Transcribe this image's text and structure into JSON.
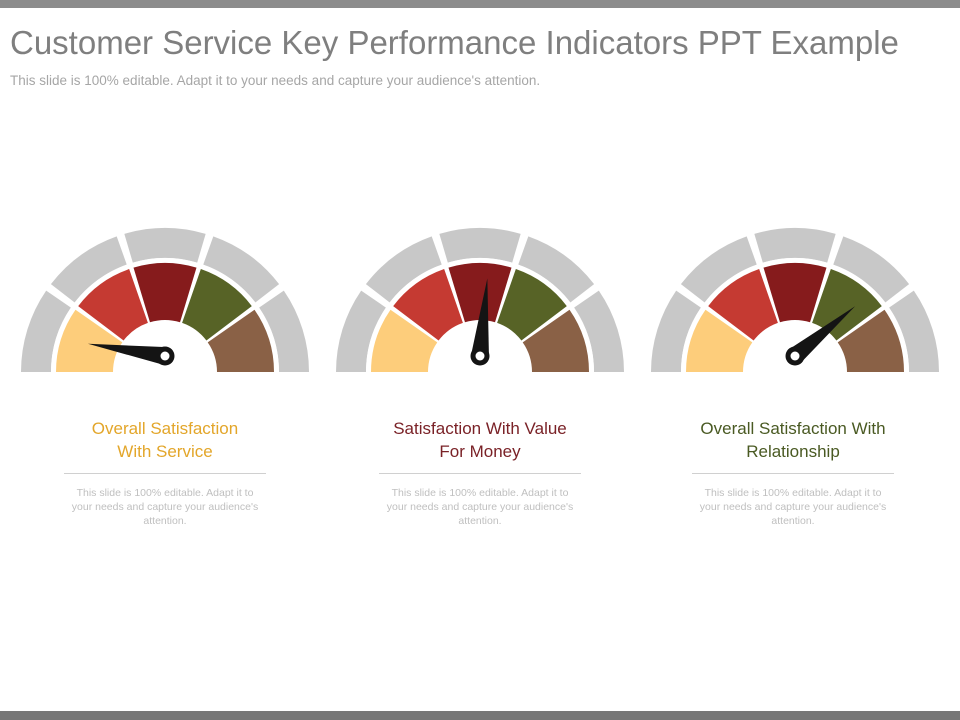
{
  "slide": {
    "title": "Customer Service Key Performance Indicators PPT Example",
    "subtitle": "This slide is 100% editable. Adapt it to your needs and capture your audience's attention."
  },
  "colors": {
    "outer_ring": "#c8c8c8",
    "segment_colors": [
      "#fdcd7b",
      "#c53a32",
      "#861b1c",
      "#576326",
      "#8a6146"
    ],
    "needle": "#141414",
    "title": "#7f7f7f",
    "subtitle": "#a6a6a6"
  },
  "gauges": [
    {
      "name": "overall-satisfaction-with-service",
      "level_fraction": 0.05,
      "title": "Overall Satisfaction\nWith Service",
      "title_color": "#e3a62a",
      "description": "This slide is 100% editable. Adapt it to your needs and capture your audience's attention."
    },
    {
      "name": "satisfaction-with-value-for-money",
      "level_fraction": 0.53,
      "title": "Satisfaction With Value\nFor Money",
      "title_color": "#7a2227",
      "description": "This slide is 100% editable. Adapt it to your needs and capture your audience's attention."
    },
    {
      "name": "overall-satisfaction-with-relationship",
      "level_fraction": 0.78,
      "title": "Overall Satisfaction With\nRelationship",
      "title_color": "#4a5a23",
      "description": "This slide is 100% editable. Adapt it to your needs and capture your audience's attention."
    }
  ]
}
